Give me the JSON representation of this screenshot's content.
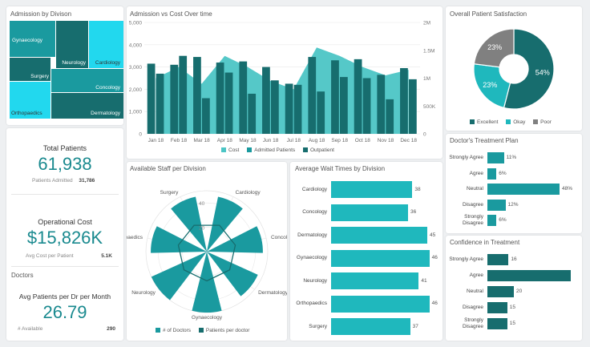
{
  "colors": {
    "teal_light": "#4cc5c5",
    "teal": "#1a9a9f",
    "teal_dark": "#176d6e",
    "cyan": "#22d8ee",
    "grey": "#808080"
  },
  "admission_by_division": {
    "title": "Admission by Divison",
    "cells": [
      {
        "label": "Gynaecology"
      },
      {
        "label": "Neurology"
      },
      {
        "label": "Cardiology"
      },
      {
        "label": "Surgery"
      },
      {
        "label": "Concology"
      },
      {
        "label": "Orthopaedics"
      },
      {
        "label": "Dermatology"
      }
    ]
  },
  "admission_vs_cost": {
    "title": "Admission vs Cost Over time",
    "chart_data": {
      "type": "bar",
      "categories": [
        "Jan 18",
        "Feb 18",
        "Mar 18",
        "Apr 18",
        "May 18",
        "Jun 18",
        "Jul 18",
        "Aug 18",
        "Sep 18",
        "Oct 18",
        "Nov 18",
        "Dec 18"
      ],
      "series": [
        {
          "name": "Cost",
          "type": "area",
          "axis": "right",
          "values": [
            1000000,
            1200000,
            900000,
            1400000,
            1200000,
            950000,
            800000,
            1550000,
            1400000,
            1200000,
            1050000,
            1150000
          ]
        },
        {
          "name": "Admitted Patients",
          "type": "bar",
          "axis": "left",
          "values": [
            3150,
            3100,
            3450,
            3200,
            3250,
            3000,
            2250,
            3450,
            3300,
            3350,
            2650,
            2950
          ]
        },
        {
          "name": "Outpatient",
          "type": "bar",
          "axis": "left",
          "values": [
            2700,
            3500,
            1600,
            2750,
            1800,
            2400,
            2200,
            1900,
            2550,
            2500,
            1550,
            2450
          ]
        }
      ],
      "y_left_ticks": [
        "5,000",
        "4,000",
        "3,000",
        "2,000",
        "1,000",
        "0"
      ],
      "y_right_ticks": [
        "2M",
        "1.5M",
        "1M",
        "500K",
        "0"
      ],
      "ylim_left": [
        0,
        5000
      ],
      "ylim_right": [
        0,
        2000000
      ],
      "grid": true,
      "legend": "bottom"
    },
    "legend": [
      "Cost",
      "Admitted Patients",
      "Outpatient"
    ]
  },
  "satisfaction": {
    "title": "Overall Patient Satisfaction",
    "chart_data": {
      "type": "pie",
      "categories": [
        "Excellent",
        "Okay",
        "Poor"
      ],
      "values": [
        54,
        23,
        23
      ],
      "value_labels": [
        "54%",
        "23%",
        "23%"
      ],
      "legend": "bottom"
    },
    "legend": [
      "Excellent",
      "Okay",
      "Poor"
    ]
  },
  "total_patients": {
    "label": "Total Patients",
    "value": "61,938",
    "sub_label": "Patients Admitted",
    "sub_value": "31,786"
  },
  "operational_cost": {
    "label": "Operational Cost",
    "value": "$15,826K",
    "sub_label": "Avg Cost per Patient",
    "sub_value": "5.1K"
  },
  "doctors": {
    "section": "Doctors",
    "label": "Avg Patients per Dr per Month",
    "value": "26.79",
    "sub_label": "# Available",
    "sub_value": "290"
  },
  "staff_per_division": {
    "title": "Available Staff per Division",
    "chart_data": {
      "type": "radar",
      "categories": [
        "Surgery",
        "Cardiology",
        "Concology",
        "Dermatology",
        "Gynaecology",
        "Neurology",
        "Orthopaedics"
      ],
      "category_labels": [
        "Surgery",
        "Cardiology",
        "Concology",
        "Dermatology",
        "Gynaecology",
        "Neurology",
        "paedics"
      ],
      "series": [
        {
          "name": "# of Doctors",
          "values": [
            46,
            46,
            46,
            46,
            50,
            50,
            46
          ]
        },
        {
          "name": "Patients per doctor",
          "values": [
            24,
            24,
            24,
            24,
            24,
            24,
            24
          ]
        }
      ],
      "r_ticks": [
        "40",
        "20"
      ]
    },
    "legend": [
      "# of Doctors",
      "Patients per doctor"
    ]
  },
  "wait_times": {
    "title": "Average Wait Times by Division",
    "chart_data": {
      "type": "bar",
      "orientation": "horizontal",
      "categories": [
        "Cardiology",
        "Concology",
        "Dermatology",
        "Gynaecology",
        "Neurology",
        "Orthopaedics",
        "Surgery"
      ],
      "values": [
        38,
        36,
        45,
        46,
        41,
        46,
        37
      ],
      "value_labels": [
        "38",
        "36",
        "45",
        "46",
        "41",
        "46",
        "37"
      ],
      "xlim": [
        0,
        48
      ]
    }
  },
  "treatment_plan": {
    "title": "Doctor's Treatment Plan",
    "chart_data": {
      "type": "bar",
      "orientation": "horizontal",
      "categories": [
        "Strongly Agree",
        "Agree",
        "Neutral",
        "Disagree",
        "Strongly Disagree"
      ],
      "values": [
        11,
        6,
        48,
        12,
        6
      ],
      "value_labels": [
        "11%",
        "6%",
        "48%",
        "12%",
        "6%"
      ],
      "xlim": [
        0,
        48
      ]
    },
    "labels": [
      [
        "Strongly Agree"
      ],
      [
        "Agree"
      ],
      [
        "Neutral"
      ],
      [
        "Disagree"
      ],
      [
        "Strongly",
        "Disagree"
      ]
    ]
  },
  "confidence": {
    "title": "Confidence in Treatment",
    "chart_data": {
      "type": "bar",
      "orientation": "horizontal",
      "categories": [
        "Strongly Agree",
        "Agree",
        "Neutral",
        "Disagree",
        "Strongly Disagree"
      ],
      "values": [
        16,
        63,
        20,
        15,
        15
      ],
      "value_labels": [
        "16",
        "",
        "20",
        "15",
        "15"
      ],
      "xlim": [
        0,
        63
      ]
    },
    "labels": [
      [
        "Strongly Agree"
      ],
      [
        "Agree"
      ],
      [
        "Neutral"
      ],
      [
        "Disagree"
      ],
      [
        "Strongly",
        "Disagree"
      ]
    ]
  }
}
